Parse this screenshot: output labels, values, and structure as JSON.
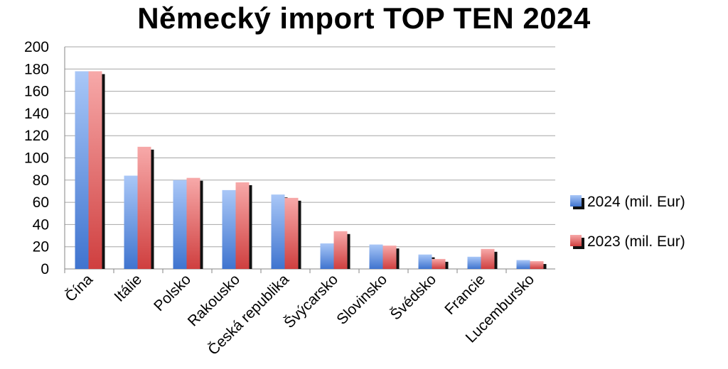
{
  "chart_data": {
    "type": "bar",
    "title": "Německý import TOP TEN 2024",
    "xlabel": "",
    "ylabel": "",
    "ylim": [
      0,
      200
    ],
    "yticks": [
      0,
      20,
      40,
      60,
      80,
      100,
      120,
      140,
      160,
      180,
      200
    ],
    "grid": true,
    "legend_position": "right",
    "categories": [
      "Čína",
      "Itálie",
      "Polsko",
      "Rakousko",
      "Česká republika",
      "Švýcarsko",
      "Slovinsko",
      "Švédsko",
      "Francie",
      "Lucembursko"
    ],
    "series": [
      {
        "name": "2024 (mil. Eur)",
        "color": "#5b8fe0",
        "values": [
          178,
          84,
          80,
          71,
          67,
          23,
          22,
          13,
          11,
          8
        ]
      },
      {
        "name": "2023 (mil. Eur)",
        "color": "#e05a5a",
        "values": [
          178,
          110,
          82,
          78,
          64,
          34,
          21,
          9,
          18,
          7
        ]
      }
    ]
  }
}
